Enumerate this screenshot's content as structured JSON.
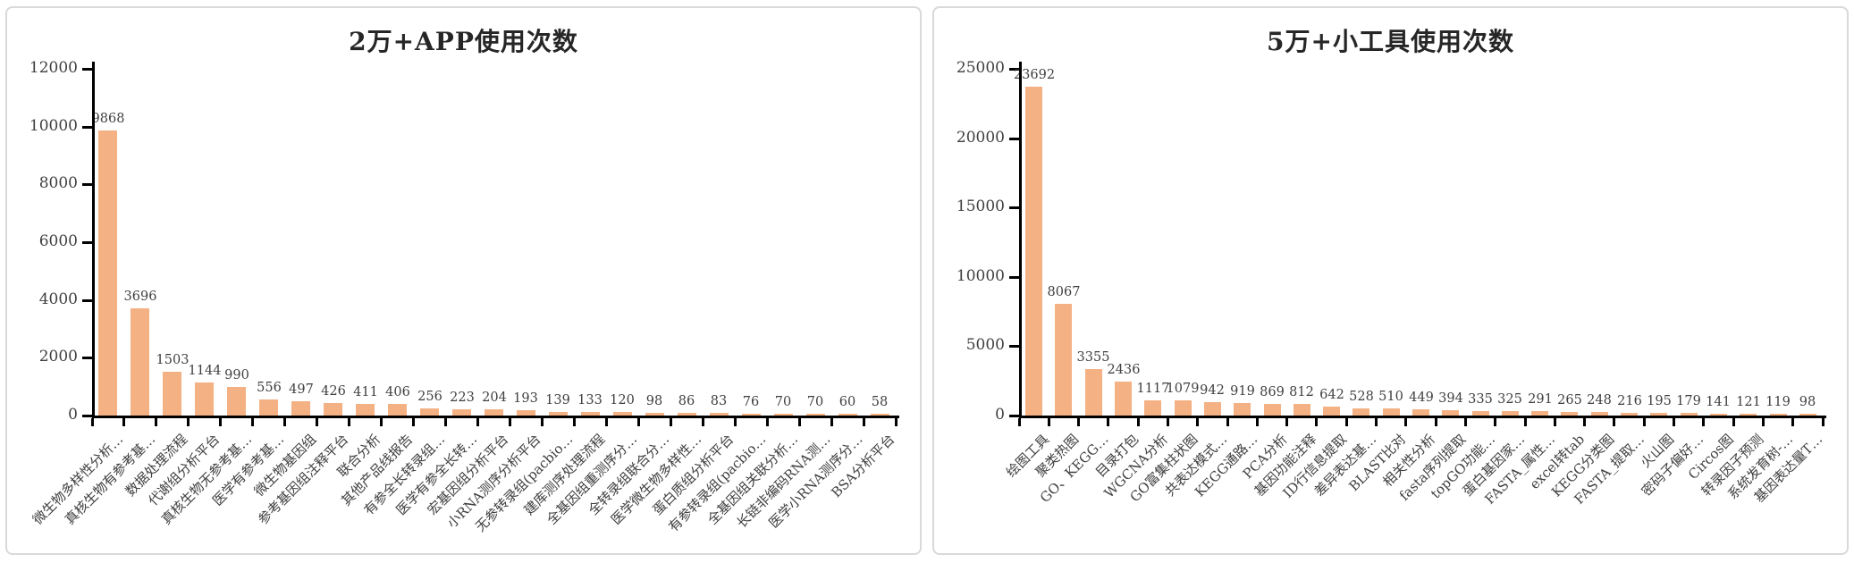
{
  "page": {
    "background": "#ffffff",
    "panel_border": "#d9d9d9"
  },
  "style": {
    "bar_color": "#F4B183",
    "axis_color": "#000000",
    "text_color": "#404040",
    "title_color": "#262626"
  },
  "chart_data": [
    {
      "type": "bar",
      "title": "2万+APP使用次数",
      "categories": [
        "微生物多样性分析…",
        "真核生物有参考基…",
        "数据处理流程",
        "代谢组分析平台",
        "真核生物无参考基…",
        "医学有参考基…",
        "微生物基因组",
        "参考基因组注释平台",
        "联合分析",
        "其他产品线报告",
        "有参全长转录组…",
        "医学有参全长转…",
        "宏基因组分析平台",
        "小RNA测序分析平台",
        "无参转录组(pacbio…",
        "建库测序处理流程",
        "全基因组重测序分…",
        "全转录组联合分…",
        "医学微生物多样性…",
        "蛋白质组分析平台",
        "有参转录组(pacbio…",
        "全基因组关联分析…",
        "长链非编码RNA测…",
        "医学小RNA测序分…",
        "BSA分析平台"
      ],
      "values": [
        9868,
        3696,
        1503,
        1144,
        990,
        556,
        497,
        426,
        411,
        406,
        256,
        223,
        204,
        193,
        139,
        133,
        120,
        98,
        86,
        83,
        76,
        70,
        70,
        60,
        58
      ],
      "xlabel": "",
      "ylabel": "",
      "ylim": [
        0,
        12000
      ],
      "yticks": [
        0,
        2000,
        4000,
        6000,
        8000,
        10000,
        12000
      ],
      "grid": false,
      "legend": "none",
      "data_labels": true
    },
    {
      "type": "bar",
      "title": "5万+小工具使用次数",
      "categories": [
        "绘图工具",
        "聚类热图",
        "GO、KEGG…",
        "目录打包",
        "WGCNA分析",
        "GO富集柱状图",
        "共表达模式…",
        "KEGG通路…",
        "PCA分析",
        "基因功能注释",
        "ID行信息提取",
        "差异表达基…",
        "BLAST比对",
        "相关性分析",
        "fasta序列提取",
        "topGO功能…",
        "蛋白基因家…",
        "FASTA_属性…",
        "excel转tab",
        "KEGG分类图",
        "FASTA_提取…",
        "火山图",
        "密码子偏好…",
        "Circos图",
        "转录因子预测",
        "系统发育树-…",
        "基因表达量T…"
      ],
      "values": [
        23692,
        8067,
        3355,
        2436,
        1117,
        1079,
        942,
        919,
        869,
        812,
        642,
        528,
        510,
        449,
        394,
        335,
        325,
        291,
        265,
        248,
        216,
        195,
        179,
        141,
        121,
        119,
        98
      ],
      "xlabel": "",
      "ylabel": "",
      "ylim": [
        0,
        25000
      ],
      "yticks": [
        0,
        5000,
        10000,
        15000,
        20000,
        25000
      ],
      "grid": false,
      "legend": "none",
      "data_labels": true
    }
  ]
}
